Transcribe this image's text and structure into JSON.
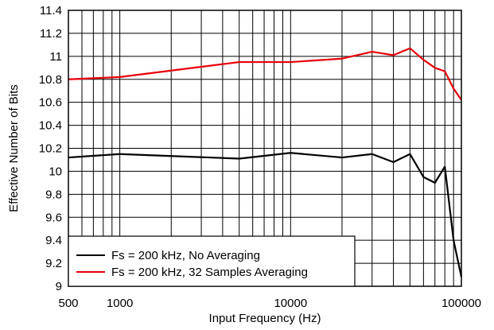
{
  "chart_data": {
    "type": "line",
    "title": "",
    "xlabel": "Input Frequency (Hz)",
    "ylabel": "Effective Number of Bits",
    "xscale": "log",
    "xlim": [
      500,
      100000
    ],
    "ylim": [
      9,
      11.4
    ],
    "x_tick_labels": [
      "500",
      "1000",
      "10000",
      "100000"
    ],
    "x_tick_values": [
      500,
      1000,
      10000,
      100000
    ],
    "y_tick_labels": [
      "9",
      "9.2",
      "9.4",
      "9.6",
      "9.8",
      "10",
      "10.2",
      "10.4",
      "10.6",
      "10.8",
      "11",
      "11.2",
      "11.4"
    ],
    "y_tick_values": [
      9,
      9.2,
      9.4,
      9.6,
      9.8,
      10,
      10.2,
      10.4,
      10.6,
      10.8,
      11,
      11.2,
      11.4
    ],
    "grid": true,
    "legend_position": "bottom-left",
    "series": [
      {
        "name": "Fs = 200 kHz, No Averaging",
        "color": "#000000",
        "x": [
          500,
          1000,
          5000,
          10000,
          20000,
          30000,
          40000,
          50000,
          60000,
          70000,
          80000,
          90000,
          100000
        ],
        "y": [
          10.12,
          10.15,
          10.11,
          10.16,
          10.12,
          10.15,
          10.08,
          10.15,
          9.95,
          9.9,
          10.04,
          9.4,
          9.08
        ]
      },
      {
        "name": "Fs = 200 kHz, 32 Samples Averaging",
        "color": "#e8000b",
        "x": [
          500,
          1000,
          5000,
          10000,
          20000,
          30000,
          40000,
          50000,
          60000,
          70000,
          80000,
          90000,
          100000
        ],
        "y": [
          10.8,
          10.82,
          10.95,
          10.95,
          10.98,
          11.04,
          11.01,
          11.07,
          10.97,
          10.9,
          10.87,
          10.72,
          10.62
        ]
      }
    ]
  }
}
